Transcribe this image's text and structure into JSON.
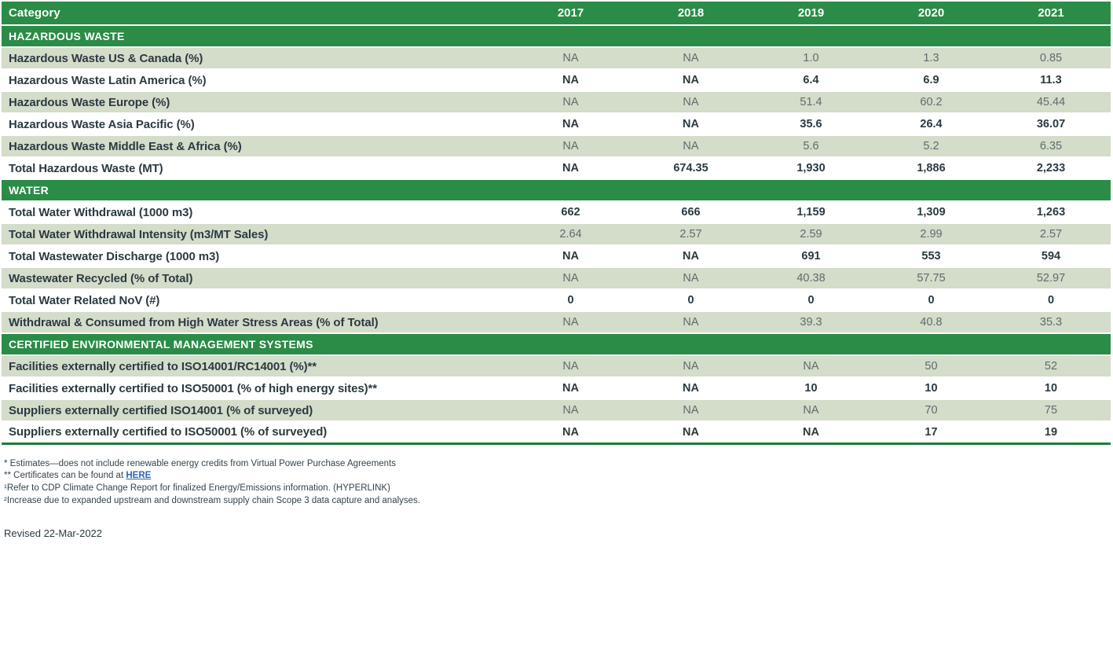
{
  "table": {
    "header": {
      "category": "Category",
      "years": [
        "2017",
        "2018",
        "2019",
        "2020",
        "2021"
      ]
    },
    "sections": [
      {
        "title": "HAZARDOUS WASTE",
        "rows": [
          {
            "label": "Hazardous Waste US & Canada (%)",
            "values": [
              "NA",
              "NA",
              "1.0",
              "1.3",
              "0.85"
            ]
          },
          {
            "label": "Hazardous Waste Latin America (%)",
            "values": [
              "NA",
              "NA",
              "6.4",
              "6.9",
              "11.3"
            ]
          },
          {
            "label": "Hazardous Waste Europe (%)",
            "values": [
              "NA",
              "NA",
              "51.4",
              "60.2",
              "45.44"
            ]
          },
          {
            "label": "Hazardous Waste Asia Pacific (%)",
            "values": [
              "NA",
              "NA",
              "35.6",
              "26.4",
              "36.07"
            ]
          },
          {
            "label": "Hazardous Waste Middle East & Africa (%)",
            "values": [
              "NA",
              "NA",
              "5.6",
              "5.2",
              "6.35"
            ]
          },
          {
            "label": "Total Hazardous Waste (MT)",
            "values": [
              "NA",
              "674.35",
              "1,930",
              "1,886",
              "2,233"
            ]
          }
        ]
      },
      {
        "title": "WATER",
        "rows": [
          {
            "label": "Total Water Withdrawal (1000 m3)",
            "values": [
              "662",
              "666",
              "1,159",
              "1,309",
              "1,263"
            ]
          },
          {
            "label": "Total Water Withdrawal Intensity (m3/MT Sales)",
            "values": [
              "2.64",
              "2.57",
              "2.59",
              "2.99",
              "2.57"
            ]
          },
          {
            "label": "Total Wastewater Discharge (1000 m3)",
            "values": [
              "NA",
              "NA",
              "691",
              "553",
              "594"
            ]
          },
          {
            "label": "Wastewater Recycled (% of Total)",
            "values": [
              "NA",
              "NA",
              "40.38",
              "57.75",
              "52.97"
            ]
          },
          {
            "label": "Total Water Related NoV (#)",
            "values": [
              "0",
              "0",
              "0",
              "0",
              "0"
            ]
          },
          {
            "label": "Withdrawal & Consumed from High Water Stress Areas (% of Total)",
            "values": [
              "NA",
              "NA",
              "39.3",
              "40.8",
              "35.3"
            ]
          }
        ]
      },
      {
        "title": "CERTIFIED ENVIRONMENTAL MANAGEMENT SYSTEMS",
        "rows": [
          {
            "label": "Facilities externally certified to ISO14001/RC14001 (%)**",
            "values": [
              "NA",
              "NA",
              "NA",
              "50",
              "52"
            ]
          },
          {
            "label": "Facilities externally certified to ISO50001 (% of high energy sites)**",
            "values": [
              "NA",
              "NA",
              "10",
              "10",
              "10"
            ]
          },
          {
            "label": "Suppliers externally certified ISO14001 (% of surveyed)",
            "values": [
              "NA",
              "NA",
              "NA",
              "70",
              "75"
            ]
          },
          {
            "label": "Suppliers externally certified to ISO50001 (% of surveyed)",
            "values": [
              "NA",
              "NA",
              "NA",
              "17",
              "19"
            ]
          }
        ]
      }
    ]
  },
  "footnotes": {
    "fn1": "* Estimates—does not include renewable energy credits from Virtual Power Purchase Agreements",
    "fn2_before": "** Certificates can be found at ",
    "fn2_link": "HERE",
    "fn3_sup": "¹",
    "fn3": "Refer to CDP Climate Change Report for finalized Energy/Emissions information. (HYPERLINK)",
    "fn4_sup": "²",
    "fn4": "Increase due to expanded upstream and downstream supply chain Scope 3 data capture and analyses."
  },
  "revised": "Revised 22-Mar-2022",
  "colors": {
    "green": "#2a8c46",
    "row_shaded": "#d4dcca",
    "text_dark": "#2b3a42",
    "text_muted": "#5d6c6c",
    "bottom_border_green": "#1f7d3c",
    "link_blue": "#2b66ae"
  }
}
